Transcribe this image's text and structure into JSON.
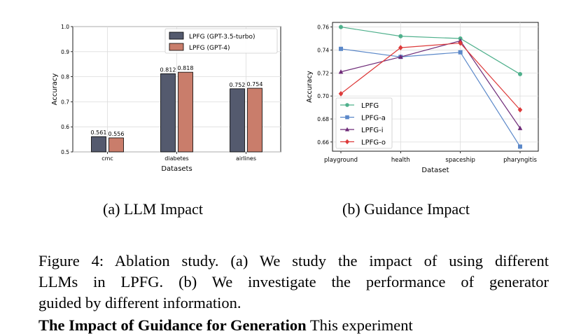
{
  "chart_data": [
    {
      "type": "bar",
      "categories": [
        "cmc",
        "diabetes",
        "airlines"
      ],
      "series": [
        {
          "name": "LPFG (GPT-3.5-turbo)",
          "values": [
            0.561,
            0.812,
            0.752
          ],
          "color": "#545a6e"
        },
        {
          "name": "LPFG (GPT-4)",
          "values": [
            0.556,
            0.818,
            0.754
          ],
          "color": "#c97d6b"
        }
      ],
      "data_labels": [
        [
          "0.561",
          "0.812",
          "0.752"
        ],
        [
          "0.556",
          "0.818",
          "0.754"
        ]
      ],
      "xlabel": "Datasets",
      "ylabel": "Accuracy",
      "ylim": [
        0.5,
        1.0
      ],
      "yticks": [
        "0.5",
        "0.6",
        "0.7",
        "0.8",
        "0.9",
        "1.0"
      ],
      "grid": true,
      "legend": "top-right"
    },
    {
      "type": "line",
      "categories": [
        "playground",
        "health",
        "spaceship",
        "pharyngitis"
      ],
      "series": [
        {
          "name": "LPFG",
          "values": [
            0.76,
            0.752,
            0.75,
            0.719
          ],
          "color": "#4fb08c",
          "marker": "circle"
        },
        {
          "name": "LPFG-a",
          "values": [
            0.741,
            0.734,
            0.738,
            0.656
          ],
          "color": "#5b88c9",
          "marker": "square"
        },
        {
          "name": "LPFG-i",
          "values": [
            0.721,
            0.734,
            0.748,
            0.672
          ],
          "color": "#6e2b78",
          "marker": "triangle"
        },
        {
          "name": "LPFG-o",
          "values": [
            0.702,
            0.742,
            0.746,
            0.688
          ],
          "color": "#dd3a3a",
          "marker": "diamond"
        }
      ],
      "xlabel": "Dataset",
      "ylabel": "Accuracy",
      "ylim": [
        0.652,
        0.764
      ],
      "yticks": [
        "0.66",
        "0.68",
        "0.70",
        "0.72",
        "0.74",
        "0.76"
      ],
      "grid": true,
      "legend": "bottom-left"
    }
  ],
  "subcaptions": {
    "a": "(a)  LLM Impact",
    "b": "(b)  Guidance Impact"
  },
  "caption": {
    "line1": "Figure 4: Ablation study. (a) We study the impact of using different",
    "line2": "LLMs in LPFG. (b) We investigate the performance of generator",
    "line3": "guided by different information."
  },
  "section": {
    "heading_bold": "The Impact of Guidance for Generation",
    "heading_rest": " This experiment"
  }
}
